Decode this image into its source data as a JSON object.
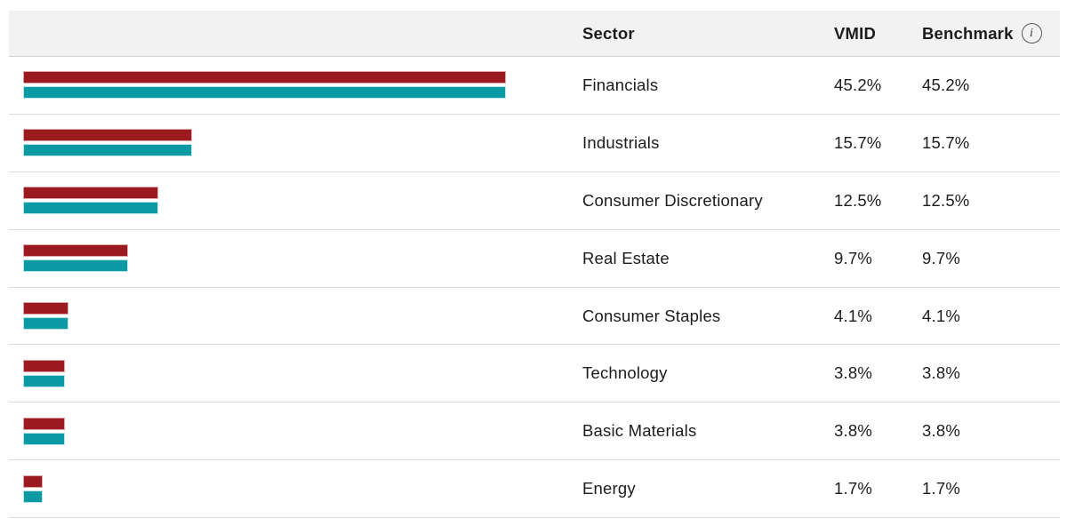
{
  "table": {
    "headers": {
      "sector": "Sector",
      "fund": "VMID",
      "benchmark": "Benchmark"
    },
    "info_icon": "info-icon",
    "info_glyph": "i"
  },
  "rows": [
    {
      "sector": "Financials",
      "vmid": "45.2%",
      "benchmark": "45.2%",
      "value": 45.2
    },
    {
      "sector": "Industrials",
      "vmid": "15.7%",
      "benchmark": "15.7%",
      "value": 15.7
    },
    {
      "sector": "Consumer Discretionary",
      "vmid": "12.5%",
      "benchmark": "12.5%",
      "value": 12.5
    },
    {
      "sector": "Real Estate",
      "vmid": "9.7%",
      "benchmark": "9.7%",
      "value": 9.7
    },
    {
      "sector": "Consumer Staples",
      "vmid": "4.1%",
      "benchmark": "4.1%",
      "value": 4.1
    },
    {
      "sector": "Technology",
      "vmid": "3.8%",
      "benchmark": "3.8%",
      "value": 3.8
    },
    {
      "sector": "Basic Materials",
      "vmid": "3.8%",
      "benchmark": "3.8%",
      "value": 3.8
    },
    {
      "sector": "Energy",
      "vmid": "1.7%",
      "benchmark": "1.7%",
      "value": 1.7
    }
  ],
  "colors": {
    "fund_bar": "#9a1a20",
    "fund_bar_border": "#dda6a9",
    "benchmark_bar": "#0b99a4",
    "benchmark_bar_border": "#b9e6ea",
    "header_bg": "#f2f2f2",
    "divider": "#dcdcdc",
    "text": "#1c1c1c"
  },
  "chart_data": {
    "type": "bar",
    "orientation": "horizontal",
    "title": "",
    "categories": [
      "Financials",
      "Industrials",
      "Consumer Discretionary",
      "Real Estate",
      "Consumer Staples",
      "Technology",
      "Basic Materials",
      "Energy"
    ],
    "series": [
      {
        "name": "VMID",
        "color": "#9a1a20",
        "values": [
          45.2,
          15.7,
          12.5,
          9.7,
          4.1,
          3.8,
          3.8,
          1.7
        ]
      },
      {
        "name": "Benchmark",
        "color": "#0b99a4",
        "values": [
          45.2,
          15.7,
          12.5,
          9.7,
          4.1,
          3.8,
          3.8,
          1.7
        ]
      }
    ],
    "value_unit": "%",
    "xlim": [
      0,
      47
    ],
    "axes_visible": false,
    "grid": false,
    "legend_position": "table-columns"
  }
}
